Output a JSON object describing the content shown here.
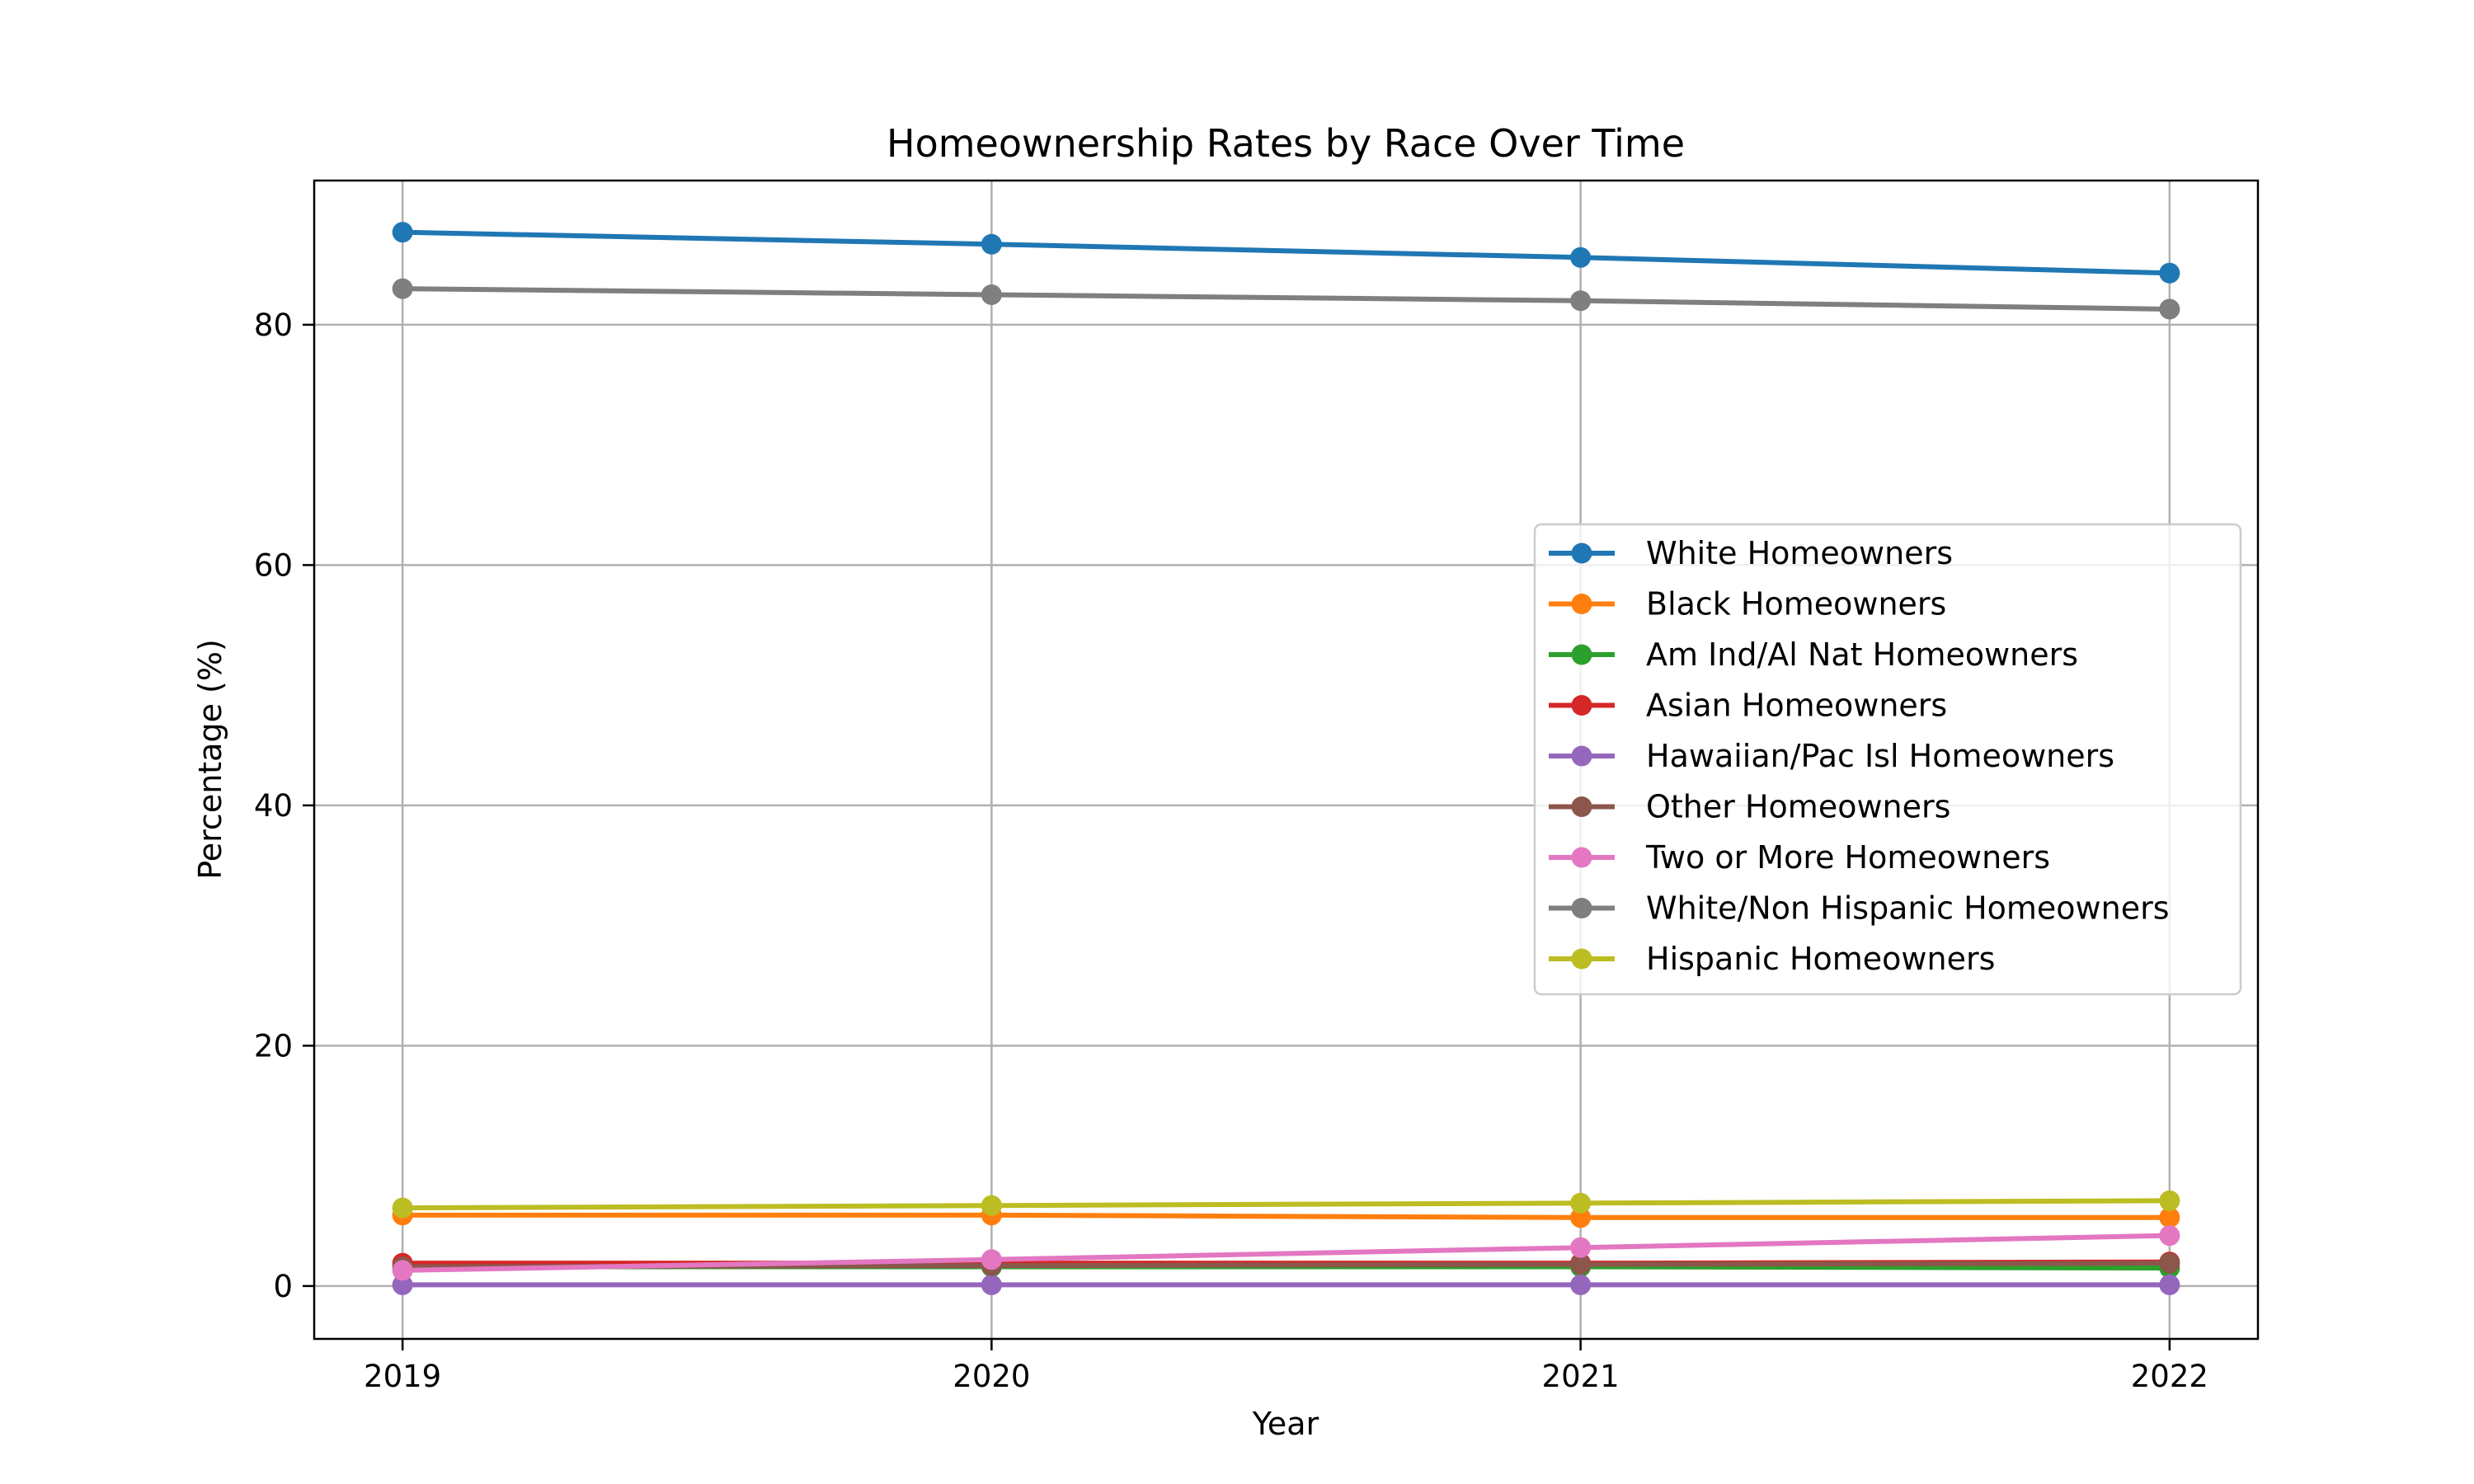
{
  "chart_data": {
    "type": "line",
    "title": "Homeownership Rates by Race Over Time",
    "xlabel": "Year",
    "ylabel": "Percentage (%)",
    "x": [
      2019,
      2020,
      2021,
      2022
    ],
    "x_tick_labels": [
      "2019",
      "2020",
      "2021",
      "2022"
    ],
    "y_ticks": [
      0,
      20,
      40,
      60,
      80
    ],
    "y_tick_labels": [
      "0",
      "20",
      "40",
      "60",
      "80"
    ],
    "xlim": [
      2018.85,
      2022.15
    ],
    "ylim": [
      -4.4,
      92.0
    ],
    "grid": true,
    "legend_position": "center-right",
    "series": [
      {
        "name": "White Homeowners",
        "color": "#1f77b4",
        "values": [
          87.7,
          86.7,
          85.6,
          84.3
        ]
      },
      {
        "name": "Black Homeowners",
        "color": "#ff7f0e",
        "values": [
          5.9,
          5.9,
          5.7,
          5.7
        ]
      },
      {
        "name": "Am Ind/Al Nat Homeowners",
        "color": "#2ca02c",
        "values": [
          1.6,
          1.6,
          1.6,
          1.5
        ]
      },
      {
        "name": "Asian Homeowners",
        "color": "#d62728",
        "values": [
          1.9,
          1.9,
          1.9,
          2.0
        ]
      },
      {
        "name": "Hawaiian/Pac Isl Homeowners",
        "color": "#9467bd",
        "values": [
          0.1,
          0.1,
          0.1,
          0.1
        ]
      },
      {
        "name": "Other Homeowners",
        "color": "#8c564b",
        "values": [
          1.6,
          1.7,
          1.8,
          1.9
        ]
      },
      {
        "name": "Two or More Homeowners",
        "color": "#e377c2",
        "values": [
          1.3,
          2.2,
          3.2,
          4.2
        ]
      },
      {
        "name": "White/Non Hispanic Homeowners",
        "color": "#7f7f7f",
        "values": [
          83.0,
          82.5,
          82.0,
          81.3
        ]
      },
      {
        "name": "Hispanic Homeowners",
        "color": "#bcbd22",
        "values": [
          6.5,
          6.7,
          6.9,
          7.1
        ]
      }
    ]
  }
}
